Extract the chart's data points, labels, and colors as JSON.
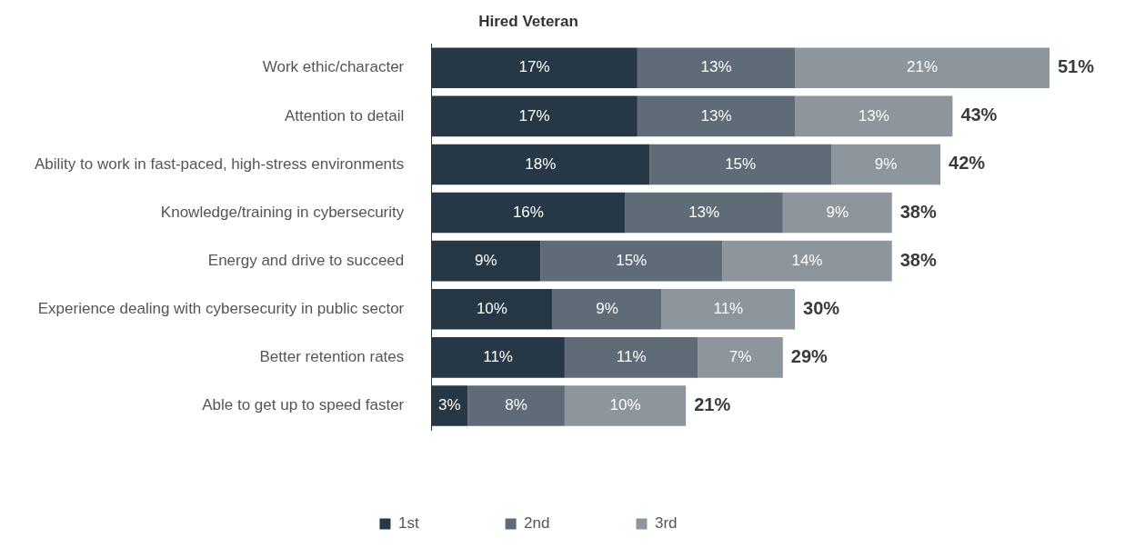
{
  "chart_data": {
    "type": "bar",
    "orientation": "horizontal",
    "stacked": true,
    "title": "Hired Veteran",
    "categories": [
      "Work ethic/character",
      "Attention to detail",
      "Ability to work in fast-paced, high-stress environments",
      "Knowledge/training in cybersecurity",
      "Energy and drive to succeed",
      "Experience dealing with cybersecurity in public sector",
      "Better retention rates",
      "Able to get up to speed faster"
    ],
    "series": [
      {
        "name": "1st",
        "color": "#263746",
        "values": [
          17,
          17,
          18,
          16,
          9,
          10,
          11,
          3
        ],
        "value_labels": [
          "17%",
          "17%",
          "18%",
          "16%",
          "9%",
          "10%",
          "11%",
          "3%"
        ]
      },
      {
        "name": "2nd",
        "color": "#5f6b76",
        "values": [
          13,
          13,
          15,
          13,
          15,
          9,
          11,
          8
        ],
        "value_labels": [
          "13%",
          "13%",
          "15%",
          "13%",
          "15%",
          "9%",
          "11%",
          "8%"
        ]
      },
      {
        "name": "3rd",
        "color": "#8d959d",
        "values": [
          21,
          13,
          9,
          9,
          14,
          11,
          7,
          10
        ],
        "value_labels": [
          "21%",
          "13%",
          "9%",
          "9%",
          "14%",
          "11%",
          "7%",
          "10%"
        ]
      }
    ],
    "totals": [
      "51%",
      "43%",
      "42%",
      "38%",
      "38%",
      "30%",
      "29%",
      "21%"
    ],
    "grid": false,
    "legend": "bottom",
    "tick_labels": "y"
  }
}
